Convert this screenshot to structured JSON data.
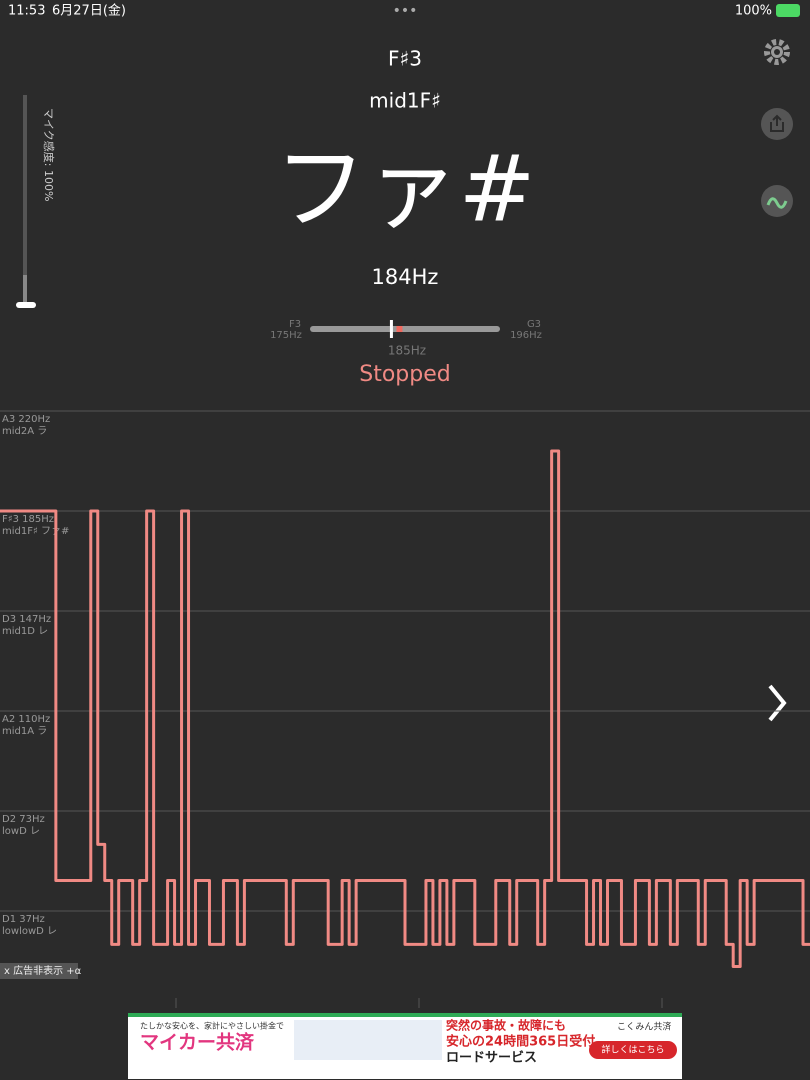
{
  "status_bar": {
    "time": "11:53",
    "date": "6月27日(金)",
    "battery": "100%"
  },
  "note": {
    "name": "F♯3",
    "alt_name": "mid1F♯",
    "solfege": "ファ#",
    "frequency": "184Hz",
    "status": "Stopped"
  },
  "mic": {
    "label": "マイク感度: 100%",
    "level": 100
  },
  "tuner": {
    "low_note": "F3",
    "low_freq": "175Hz",
    "high_note": "G3",
    "high_freq": "196Hz",
    "target": "185Hz",
    "range": [
      175,
      196
    ],
    "current": 184,
    "target_value": 185
  },
  "chart_data": {
    "type": "line",
    "color": "#f08a84",
    "yticks": [
      {
        "value": 220,
        "label": "A3  220Hz"
      },
      {
        "value": 185,
        "label": "F♯3  185Hz"
      },
      {
        "value": 147,
        "label": "D3  147Hz"
      },
      {
        "value": 110,
        "label": "A2  110Hz"
      },
      {
        "value": 73,
        "label": "D2  73Hz"
      },
      {
        "value": 37,
        "label": "D1  37Hz"
      }
    ],
    "ytick_names": [
      "mid2A ラ",
      "mid1F♯ ファ#",
      "mid1D レ",
      "mid1A ラ",
      "lowD レ",
      "lowlowD レ"
    ],
    "values": [
      185,
      185,
      185,
      185,
      185,
      185,
      185,
      185,
      48,
      48,
      48,
      48,
      48,
      185,
      61,
      48,
      25,
      48,
      48,
      25,
      48,
      185,
      25,
      25,
      48,
      25,
      185,
      25,
      48,
      48,
      25,
      25,
      48,
      48,
      25,
      48,
      48,
      48,
      48,
      48,
      48,
      25,
      48,
      48,
      48,
      48,
      48,
      25,
      25,
      48,
      25,
      48,
      48,
      48,
      48,
      48,
      48,
      48,
      25,
      25,
      25,
      48,
      25,
      48,
      25,
      48,
      48,
      48,
      25,
      25,
      25,
      48,
      48,
      25,
      48,
      48,
      48,
      25,
      48,
      206,
      48,
      48,
      48,
      48,
      25,
      48,
      25,
      48,
      48,
      25,
      25,
      48,
      48,
      25,
      48,
      48,
      25,
      48,
      48,
      48,
      25,
      48,
      48,
      48,
      25,
      17,
      48,
      25,
      48,
      48,
      48,
      48,
      48,
      48,
      48,
      25
    ]
  },
  "ad": {
    "hide": "x 広告非表示 +α",
    "tagline": "たしかな安心を、家計にやさしい掛金で",
    "brand": "マイカー共済",
    "line1": "突然の事故・故障にも",
    "line2": "安心の24時間365日受付",
    "line3": "ロードサービス",
    "button": "詳しくはこちら",
    "logo": "こくみん共済"
  }
}
